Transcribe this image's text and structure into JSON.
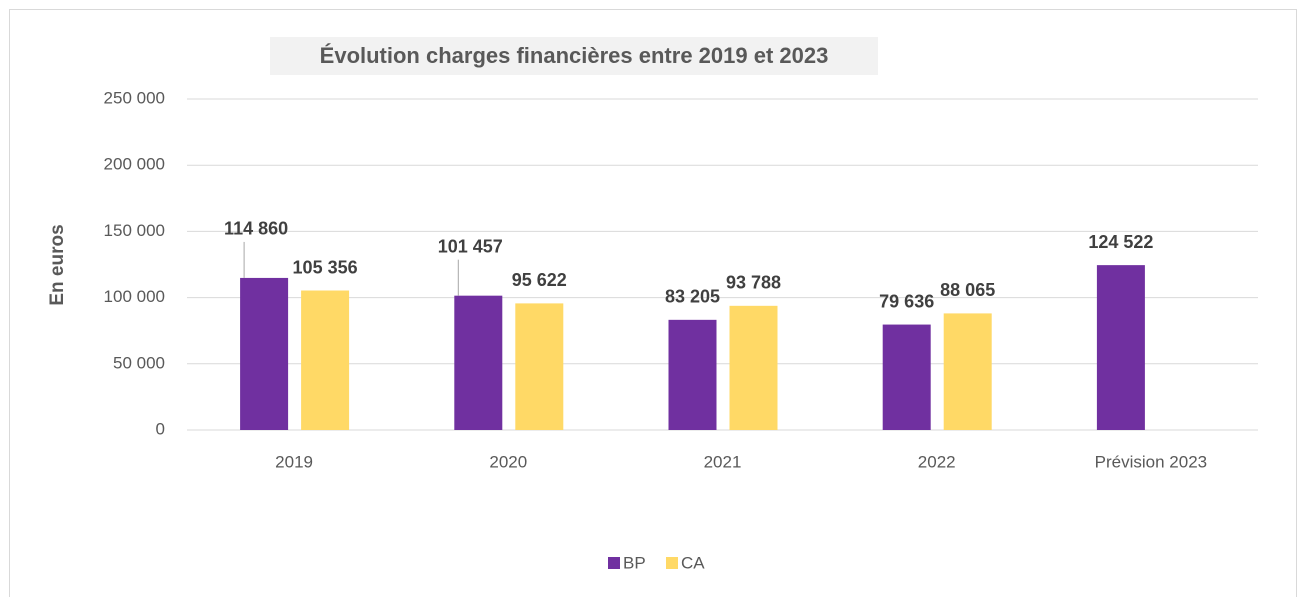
{
  "chart_data": {
    "type": "bar",
    "title": "Évolution charges financières entre 2019 et 2023",
    "y_label": "En euros",
    "categories": [
      "2019",
      "2020",
      "2021",
      "2022",
      "Prévision 2023"
    ],
    "series": [
      {
        "name": "BP",
        "color": "#7030a0",
        "values": [
          114860,
          101457,
          83205,
          79636,
          124522
        ],
        "value_labels": [
          "114 860",
          "101 457",
          "83 205",
          "79 636",
          "124 522"
        ]
      },
      {
        "name": "CA",
        "color": "#ffd966",
        "values": [
          105356,
          95622,
          93788,
          88065,
          null
        ],
        "value_labels": [
          "105 356",
          "95 622",
          "93 788",
          "88 065",
          null
        ]
      }
    ],
    "ylim": [
      0,
      250000
    ],
    "yticks": [
      0,
      {
        "value": 50000,
        "label": "50 000"
      },
      {
        "value": 100000,
        "label": "100 000"
      },
      {
        "value": 150000,
        "label": "150 000"
      },
      {
        "value": 200000,
        "label": "200 000"
      },
      {
        "value": 250000,
        "label": "250 000"
      }
    ],
    "grid": true,
    "legend": "bottom"
  }
}
